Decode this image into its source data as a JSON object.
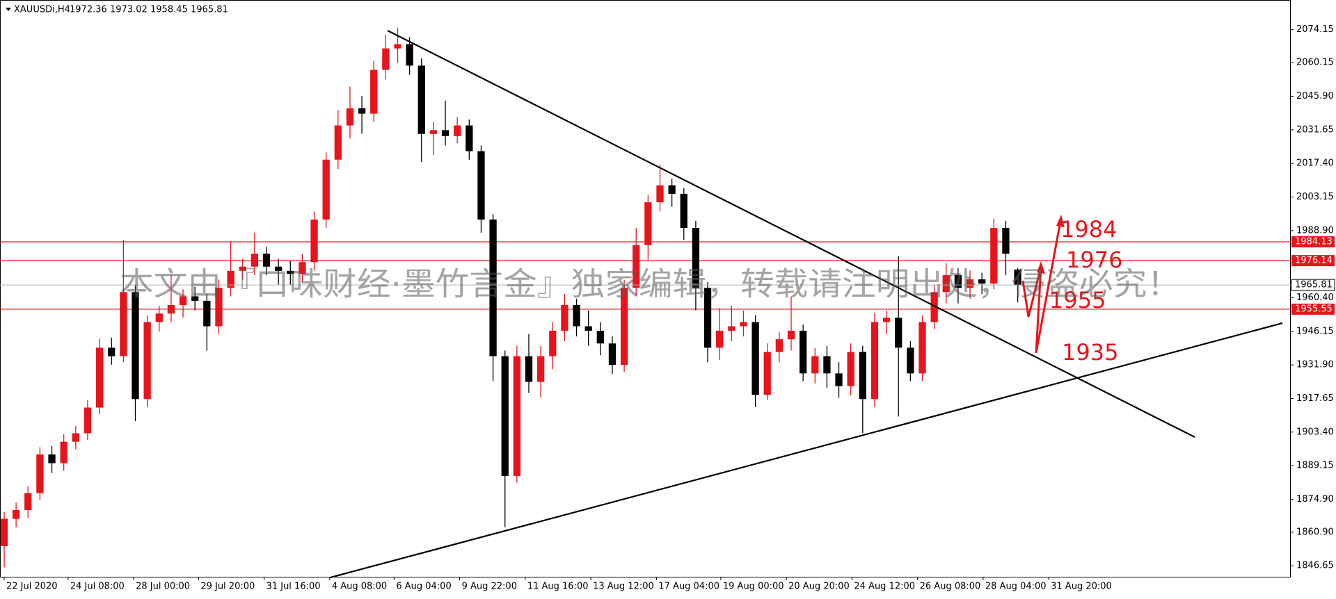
{
  "chart_data": {
    "type": "candlestick",
    "symbol": "XAUUSDi,H4",
    "up_color": "#e8141c",
    "down_color": "#000000",
    "open": [
      1855.0,
      1866.6,
      1870.3,
      1877.5,
      1893.9,
      1890.2,
      1899.3,
      1902.9,
      1913.8,
      1939.2,
      1935.6,
      1962.8,
      1917.4,
      1950.1,
      1953.7,
      1957.3,
      1961.0,
      1959.1,
      1948.3,
      1964.6,
      1971.8,
      1973.6,
      1979.1,
      1973.6,
      1971.8,
      1970.5,
      1975.5,
      1993.6,
      2019.0,
      2033.5,
      2040.8,
      2038.5,
      2057.1,
      2066.2,
      2068.0,
      2058.9,
      2029.9,
      2031.5,
      2029.0,
      2033.5,
      2022.6,
      1993.6,
      1935.6,
      1884.8,
      1935.6,
      1924.7,
      1935.6,
      1946.4,
      1957.3,
      1948.3,
      1946.4,
      1941.0,
      1931.9,
      1964.6,
      1982.7,
      2000.9,
      2008.1,
      2004.5,
      1990.0,
      1964.6,
      1939.2,
      1946.4,
      1948.3,
      1950.1,
      1919.2,
      1937.4,
      1942.8,
      1946.4,
      1928.3,
      1935.6,
      1928.3,
      1922.9,
      1937.4,
      1917.4,
      1950.1,
      1951.9,
      1939.2,
      1928.3,
      1950.1,
      1962.8,
      1970.0,
      1964.6,
      1968.2,
      1966.4,
      1990.0,
      1972.36
    ],
    "high": [
      1869.5,
      1873.5,
      1880.5,
      1897.0,
      1897.5,
      1902.5,
      1906.0,
      1917.0,
      1943.0,
      1943.5,
      1985.0,
      1966.0,
      1953.0,
      1957.0,
      1970.0,
      1964.0,
      1965.0,
      1962.0,
      1968.0,
      1984.0,
      1977.0,
      1988.0,
      1982.0,
      1977.0,
      1976.0,
      1979.0,
      1997.0,
      2022.0,
      2040.0,
      2050.0,
      2046.0,
      2061.0,
      2072.0,
      2075.0,
      2071.0,
      2062.0,
      2035.0,
      2044.0,
      2037.0,
      2036.0,
      2025.0,
      1996.0,
      1938.0,
      1940.0,
      1945.0,
      1940.0,
      1950.0,
      1962.0,
      1960.0,
      1955.0,
      1950.0,
      1944.0,
      1968.0,
      1990.0,
      2004.0,
      2017.0,
      2011.0,
      2007.0,
      1993.0,
      1967.0,
      1956.0,
      1957.0,
      1955.0,
      1953.0,
      1941.0,
      1946.0,
      1961.0,
      1949.0,
      1939.0,
      1940.0,
      1933.0,
      1941.0,
      1940.0,
      1954.0,
      1955.0,
      1978.0,
      1942.0,
      1953.0,
      1966.0,
      1975.0,
      1973.0,
      1972.0,
      1971.0,
      1994.0,
      1993.0,
      1973.02
    ],
    "low": [
      1846.0,
      1863.0,
      1867.0,
      1874.5,
      1886.0,
      1887.0,
      1896.0,
      1900.0,
      1911.0,
      1932.0,
      1933.0,
      1908.0,
      1914.0,
      1946.0,
      1950.0,
      1952.0,
      1955.0,
      1938.0,
      1945.0,
      1961.0,
      1968.0,
      1970.0,
      1970.0,
      1966.0,
      1966.0,
      1967.0,
      1972.0,
      1990.0,
      2015.0,
      2028.0,
      2030.0,
      2035.0,
      2053.0,
      2060.0,
      2055.0,
      2018.0,
      2021.0,
      2025.0,
      2026.0,
      2019.0,
      1988.0,
      1925.0,
      1863.0,
      1882.0,
      1920.0,
      1918.0,
      1930.0,
      1942.0,
      1944.0,
      1940.0,
      1936.0,
      1928.0,
      1929.0,
      1961.0,
      1976.0,
      1997.0,
      1999.0,
      1985.0,
      1955.0,
      1933.0,
      1934.0,
      1942.0,
      1944.0,
      1914.0,
      1917.0,
      1933.0,
      1938.0,
      1925.0,
      1924.0,
      1922.0,
      1918.0,
      1919.0,
      1903.0,
      1914.0,
      1945.0,
      1910.0,
      1925.0,
      1925.0,
      1947.0,
      1958.0,
      1958.0,
      1960.0,
      1962.0,
      1964.0,
      1970.0,
      1958.45
    ],
    "close": [
      1866.6,
      1870.3,
      1877.5,
      1893.9,
      1890.2,
      1899.3,
      1902.9,
      1913.8,
      1939.2,
      1935.6,
      1962.8,
      1917.4,
      1950.1,
      1953.7,
      1957.3,
      1961.0,
      1959.1,
      1948.3,
      1964.6,
      1971.8,
      1973.6,
      1979.1,
      1973.6,
      1971.8,
      1970.5,
      1975.5,
      1993.6,
      2019.0,
      2033.5,
      2040.8,
      2038.5,
      2057.1,
      2066.2,
      2068.0,
      2058.9,
      2029.9,
      2031.5,
      2029.0,
      2033.5,
      2022.6,
      1993.6,
      1935.6,
      1884.8,
      1935.6,
      1924.7,
      1935.6,
      1946.4,
      1957.3,
      1948.3,
      1946.4,
      1941.0,
      1931.9,
      1964.6,
      1982.7,
      2000.9,
      2008.1,
      2004.5,
      1990.0,
      1964.6,
      1939.2,
      1946.4,
      1948.3,
      1950.1,
      1919.2,
      1937.4,
      1942.8,
      1946.4,
      1928.3,
      1935.6,
      1928.3,
      1922.9,
      1937.4,
      1917.4,
      1950.1,
      1951.9,
      1939.2,
      1928.3,
      1950.1,
      1962.8,
      1970.0,
      1964.6,
      1968.2,
      1966.4,
      1990.0,
      1979.1,
      1965.81
    ],
    "xlim": [
      -0.35,
      107.9
    ],
    "xticks": [
      {
        "value": 0,
        "label": "22 Jul 2020"
      },
      {
        "value": 5.36,
        "label": "24 Jul 08:00"
      },
      {
        "value": 10.86,
        "label": "28 Jul 00:00"
      },
      {
        "value": 16.3,
        "label": "29 Jul 20:00"
      },
      {
        "value": 21.8,
        "label": "31 Jul 16:00"
      },
      {
        "value": 27.3,
        "label": "4 Aug 08:00"
      },
      {
        "value": 32.7,
        "label": "6 Aug 04:00"
      },
      {
        "value": 38.2,
        "label": "9 Aug 22:00"
      },
      {
        "value": 43.7,
        "label": "11 Aug 16:00"
      },
      {
        "value": 49.2,
        "label": "13 Aug 12:00"
      },
      {
        "value": 54.7,
        "label": "17 Aug 04:00"
      },
      {
        "value": 60.1,
        "label": "19 Aug 00:00"
      },
      {
        "value": 65.6,
        "label": "20 Aug 20:00"
      },
      {
        "value": 71.1,
        "label": "24 Aug 12:00"
      },
      {
        "value": 76.6,
        "label": "26 Aug 08:00"
      },
      {
        "value": 82.1,
        "label": "28 Aug 04:00"
      },
      {
        "value": 87.6,
        "label": "31 Aug 20:00"
      }
    ],
    "ylim": [
      1842.0,
      2086.45
    ],
    "yticks": [
      2074.15,
      2060.15,
      {
        "value": 2045.9,
        "label": "2045.90"
      },
      2031.65,
      {
        "value": 2017.4,
        "label": "2017.40"
      },
      2003.15,
      {
        "value": 1988.9,
        "label": "1988.90"
      },
      {
        "value": 1960.4,
        "label": "1960.40"
      },
      1946.15,
      {
        "value": 1931.9,
        "label": "1931.90"
      },
      1917.65,
      {
        "value": 1903.4,
        "label": "1903.40"
      },
      1889.15,
      {
        "value": 1874.9,
        "label": "1874.90"
      },
      {
        "value": 1860.9,
        "label": "1860.90"
      },
      1846.65
    ],
    "levels": [
      1984.13,
      1976.14,
      1955.55
    ],
    "level_color": "#e8141c",
    "annotations": [
      "1984",
      "1976",
      "1955",
      "1935"
    ],
    "watermark": "本文由『口味财经·墨竹言金』独家编辑，转载请注明出处，侵盗必究！"
  }
}
